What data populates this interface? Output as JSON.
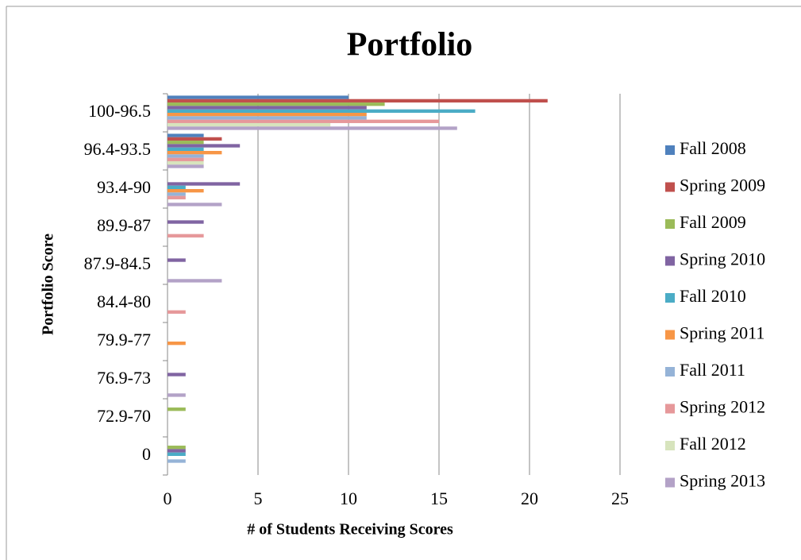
{
  "chart_data": {
    "type": "bar",
    "orientation": "horizontal",
    "title": "Portfolio",
    "x_label": "# of Students Receiving Scores",
    "y_label": "Portfolio Score",
    "categories": [
      "100-96.5",
      "96.4-93.5",
      "93.4-90",
      "89.9-87",
      "87.9-84.5",
      "84.4-80",
      "79.9-77",
      "76.9-73",
      "72.9-70",
      "0"
    ],
    "series": [
      {
        "name": "Fall 2008",
        "color": "#4f81bd",
        "values": [
          10,
          2,
          0,
          0,
          0,
          0,
          0,
          0,
          0,
          0
        ]
      },
      {
        "name": "Spring 2009",
        "color": "#c0504d",
        "values": [
          21,
          3,
          0,
          0,
          0,
          0,
          0,
          0,
          0,
          0
        ]
      },
      {
        "name": "Fall 2009",
        "color": "#9bbb59",
        "values": [
          12,
          2,
          0,
          0,
          0,
          0,
          0,
          0,
          1,
          1
        ]
      },
      {
        "name": "Spring 2010",
        "color": "#8064a2",
        "values": [
          11,
          4,
          4,
          2,
          1,
          0,
          0,
          1,
          0,
          1
        ]
      },
      {
        "name": "Fall 2010",
        "color": "#4bacc6",
        "values": [
          17,
          2,
          1,
          0,
          0,
          0,
          0,
          0,
          0,
          1
        ]
      },
      {
        "name": "Spring 2011",
        "color": "#f79646",
        "values": [
          11,
          3,
          2,
          0,
          0,
          0,
          1,
          0,
          0,
          0
        ]
      },
      {
        "name": "Fall 2011",
        "color": "#95b3d7",
        "values": [
          11,
          2,
          1,
          0,
          0,
          0,
          0,
          0,
          0,
          1
        ]
      },
      {
        "name": "Spring 2012",
        "color": "#e6989a",
        "values": [
          15,
          2,
          1,
          2,
          0,
          1,
          0,
          0,
          0,
          0
        ]
      },
      {
        "name": "Fall 2012",
        "color": "#d7e4bd",
        "values": [
          9,
          2,
          0,
          0,
          0,
          0,
          0,
          0,
          0,
          0
        ]
      },
      {
        "name": "Spring 2013",
        "color": "#b3a2c7",
        "values": [
          16,
          2,
          3,
          0,
          3,
          0,
          0,
          1,
          0,
          0
        ]
      }
    ],
    "xlim": [
      0,
      25
    ],
    "xticks": [
      0,
      5,
      10,
      15,
      20,
      25
    ],
    "grid": true,
    "legend": "right"
  }
}
